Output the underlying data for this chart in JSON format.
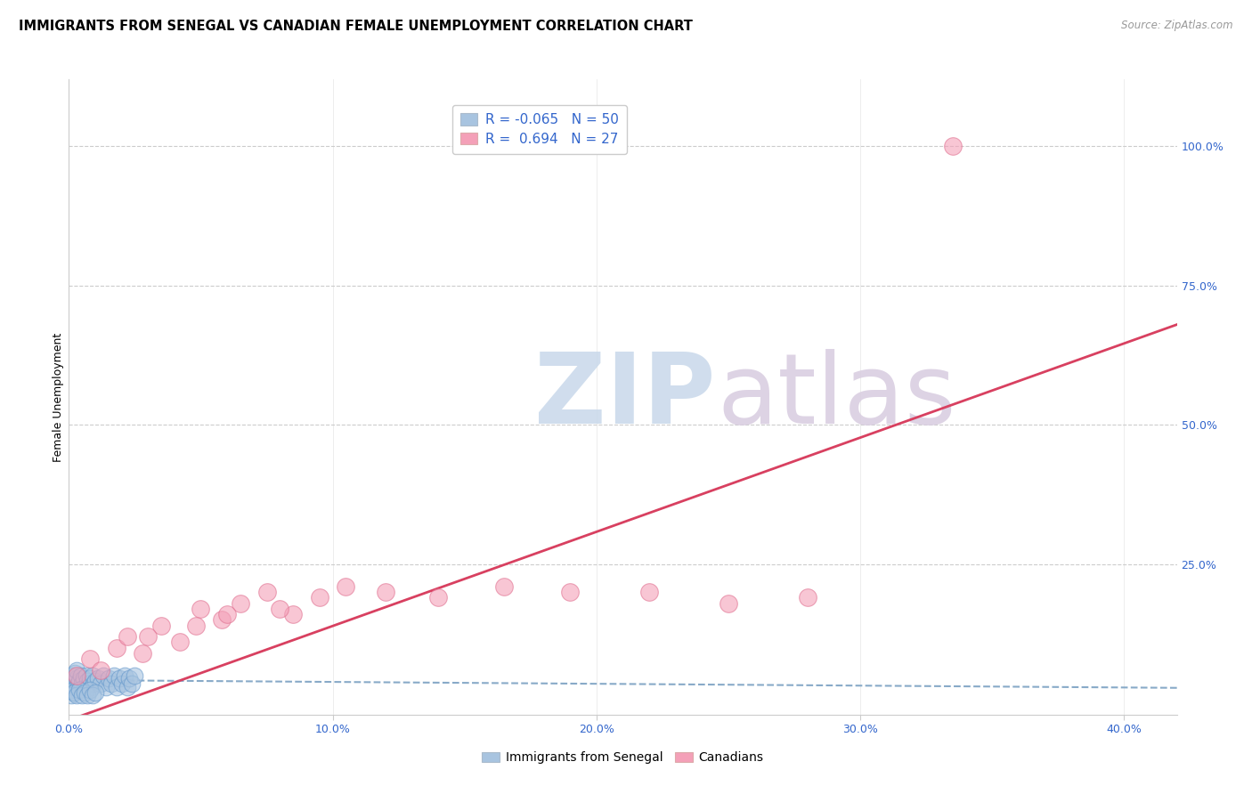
{
  "title": "IMMIGRANTS FROM SENEGAL VS CANADIAN FEMALE UNEMPLOYMENT CORRELATION CHART",
  "source": "Source: ZipAtlas.com",
  "ylabel": "Female Unemployment",
  "x_tick_labels": [
    "0.0%",
    "10.0%",
    "20.0%",
    "30.0%",
    "40.0%"
  ],
  "x_tick_vals": [
    0,
    10,
    20,
    30,
    40
  ],
  "xlim": [
    0,
    42
  ],
  "ylim": [
    -2,
    112
  ],
  "blue_color": "#a8c4e0",
  "blue_edge_color": "#6699cc",
  "pink_color": "#f4a0b8",
  "pink_edge_color": "#e07090",
  "blue_line_color": "#88aac8",
  "pink_line_color": "#d84060",
  "grid_color": "#cccccc",
  "bg_color": "#ffffff",
  "title_fontsize": 10.5,
  "axis_label_fontsize": 9,
  "tick_fontsize": 9,
  "legend_fontsize": 11,
  "blue_scatter_x": [
    0.05,
    0.08,
    0.1,
    0.12,
    0.15,
    0.18,
    0.2,
    0.22,
    0.25,
    0.28,
    0.3,
    0.35,
    0.4,
    0.45,
    0.5,
    0.55,
    0.6,
    0.65,
    0.7,
    0.75,
    0.8,
    0.85,
    0.9,
    0.95,
    1.0,
    1.1,
    1.2,
    1.3,
    1.4,
    1.5,
    1.6,
    1.7,
    1.8,
    1.9,
    2.0,
    2.1,
    2.2,
    2.3,
    2.4,
    2.5,
    0.1,
    0.2,
    0.3,
    0.4,
    0.5,
    0.6,
    0.7,
    0.8,
    0.9,
    1.0
  ],
  "blue_scatter_y": [
    3.0,
    4.5,
    2.5,
    5.0,
    3.5,
    4.0,
    2.0,
    5.5,
    3.0,
    4.5,
    6.0,
    3.5,
    4.0,
    5.0,
    3.5,
    4.5,
    3.0,
    5.0,
    4.0,
    3.5,
    4.5,
    3.0,
    5.0,
    3.5,
    4.0,
    4.5,
    3.5,
    5.0,
    3.0,
    4.5,
    3.5,
    5.0,
    3.0,
    4.5,
    3.5,
    5.0,
    3.0,
    4.5,
    3.5,
    5.0,
    1.5,
    2.0,
    1.5,
    2.5,
    1.5,
    2.0,
    1.5,
    2.5,
    1.5,
    2.0
  ],
  "pink_scatter_x": [
    0.3,
    0.8,
    1.2,
    1.8,
    2.2,
    2.8,
    3.5,
    4.2,
    5.0,
    5.8,
    6.5,
    7.5,
    8.5,
    9.5,
    10.5,
    12.0,
    14.0,
    16.5,
    19.0,
    22.0,
    25.0,
    28.0,
    33.5,
    3.0,
    4.8,
    6.0,
    8.0
  ],
  "pink_scatter_y": [
    5.0,
    8.0,
    6.0,
    10.0,
    12.0,
    9.0,
    14.0,
    11.0,
    17.0,
    15.0,
    18.0,
    20.0,
    16.0,
    19.0,
    21.0,
    20.0,
    19.0,
    21.0,
    20.0,
    20.0,
    18.0,
    19.0,
    100.0,
    12.0,
    14.0,
    16.0,
    17.0
  ],
  "blue_trend_x": [
    0,
    42
  ],
  "blue_trend_y": [
    4.2,
    2.8
  ],
  "pink_trend_x": [
    0,
    42
  ],
  "pink_trend_y": [
    -3,
    68
  ],
  "watermark_text": "ZIPatlas",
  "watermark_color": "#dde6f0",
  "bottom_legend_labels": [
    "Immigrants from Senegal",
    "Canadians"
  ]
}
